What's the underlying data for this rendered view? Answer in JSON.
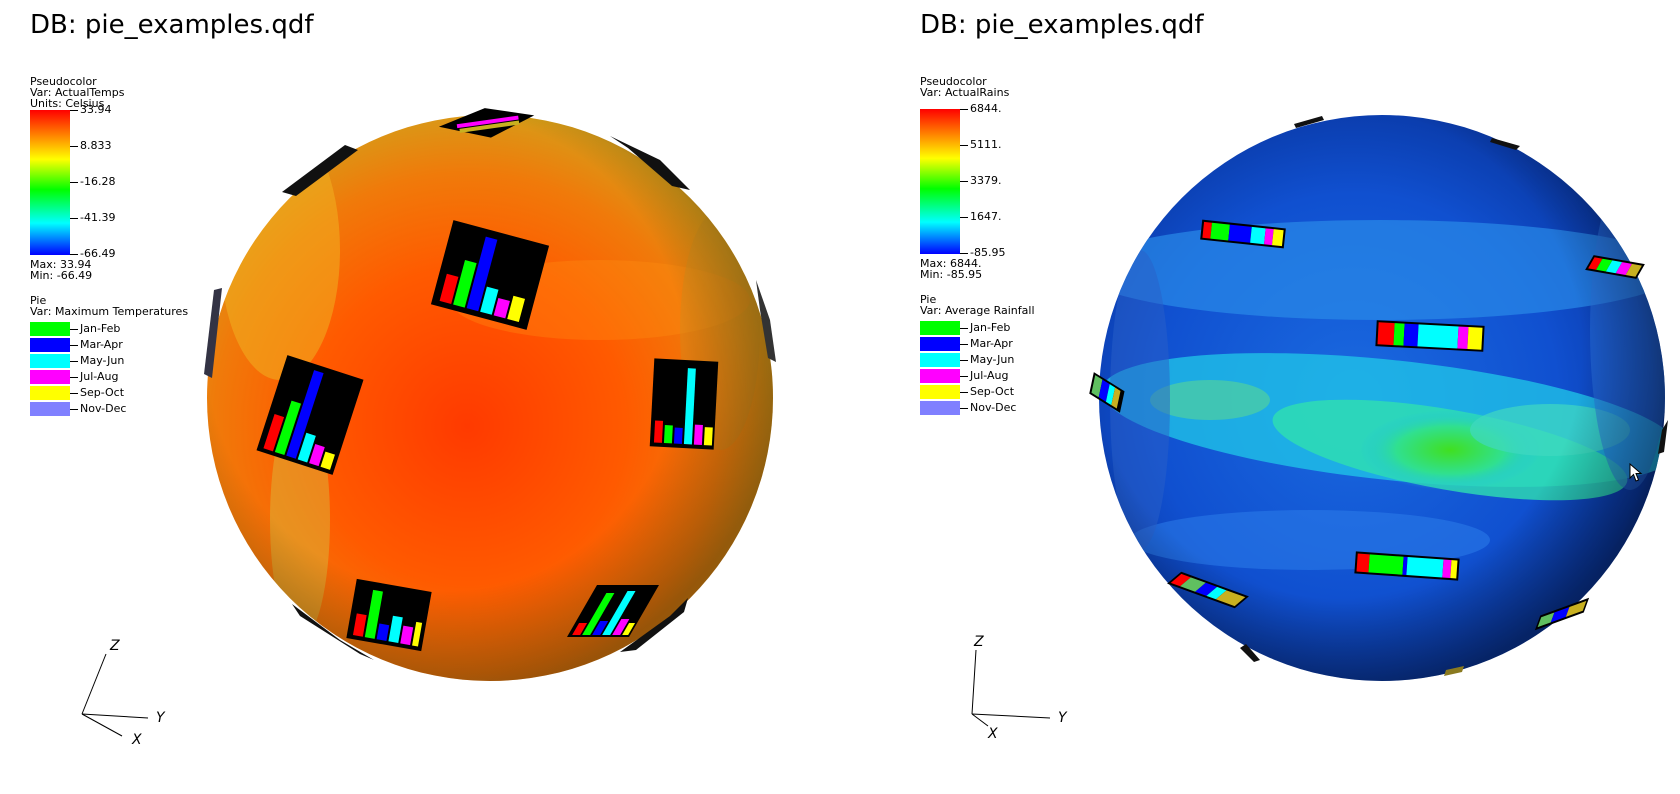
{
  "left": {
    "db_title": "DB: pie_examples.qdf",
    "pseudocolor": {
      "title": "Pseudocolor",
      "var": "Var: ActualTemps",
      "units": "Units: Celsius",
      "ticks": [
        "33.94",
        "8.833",
        "-16.28",
        "-41.39",
        "-66.49"
      ],
      "max": "Max:  33.94",
      "min": "Min: -66.49"
    },
    "pie": {
      "title": "Pie",
      "var": "Var: Maximum Temperatures",
      "items": [
        {
          "label": "Jan-Feb",
          "color": "#00ff00"
        },
        {
          "label": "Mar-Apr",
          "color": "#0000ff"
        },
        {
          "label": "May-Jun",
          "color": "#00ffff"
        },
        {
          "label": "Jul-Aug",
          "color": "#ff00ff"
        },
        {
          "label": "Sep-Oct",
          "color": "#ffff00"
        },
        {
          "label": "Nov-Dec",
          "color": "#8080ff"
        }
      ]
    },
    "axes": {
      "z": "Z",
      "y": "Y",
      "x": "X"
    }
  },
  "right": {
    "db_title": "DB: pie_examples.qdf",
    "pseudocolor": {
      "title": "Pseudocolor",
      "var": "Var: ActualRains",
      "units": "",
      "ticks": [
        "6844.",
        "5111.",
        "3379.",
        "1647.",
        "-85.95"
      ],
      "max": "Max:  6844.",
      "min": "Min: -85.95"
    },
    "pie": {
      "title": "Pie",
      "var": "Var: Average Rainfall",
      "items": [
        {
          "label": "Jan-Feb",
          "color": "#00ff00"
        },
        {
          "label": "Mar-Apr",
          "color": "#0000ff"
        },
        {
          "label": "May-Jun",
          "color": "#00ffff"
        },
        {
          "label": "Jul-Aug",
          "color": "#ff00ff"
        },
        {
          "label": "Sep-Oct",
          "color": "#ffff00"
        },
        {
          "label": "Nov-Dec",
          "color": "#8080ff"
        }
      ]
    },
    "axes": {
      "z": "Z",
      "y": "Y",
      "x": "X"
    }
  },
  "icons": {
    "cursor": "mouse-pointer-icon"
  }
}
